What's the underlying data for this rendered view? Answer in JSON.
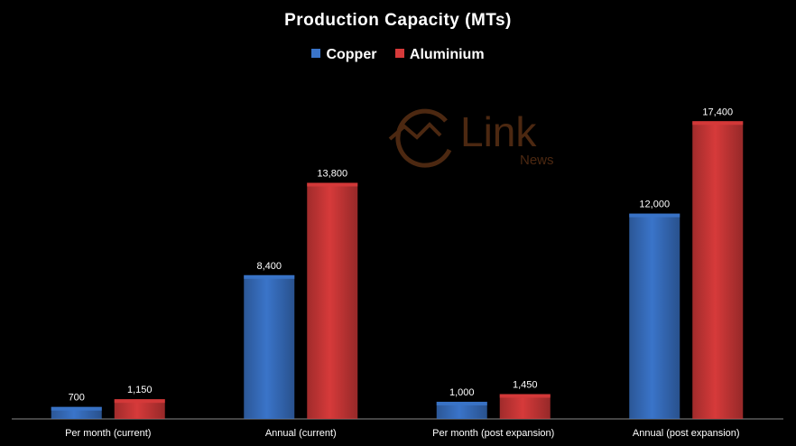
{
  "chart_data": {
    "type": "bar",
    "title": "Production Capacity (MTs)",
    "categories": [
      "Per month (current)",
      "Annual  (current)",
      "Per month (post expansion)",
      "Annual (post expansion)"
    ],
    "series": [
      {
        "name": "Copper",
        "color": "#3a74c9",
        "values": [
          700,
          8400,
          1000,
          12000
        ],
        "labels": [
          "700",
          "8,400",
          "1,000",
          "12,000"
        ]
      },
      {
        "name": "Aluminium",
        "color": "#d63a3a",
        "values": [
          1150,
          13800,
          1450,
          17400
        ],
        "labels": [
          "1,150",
          "13,800",
          "1,450",
          "17,400"
        ]
      }
    ],
    "ylim": [
      0,
      20000
    ],
    "grid": false,
    "legend_position": "top"
  },
  "watermark": {
    "brand": "Link",
    "sub": "News",
    "color": "#8a4a20"
  }
}
